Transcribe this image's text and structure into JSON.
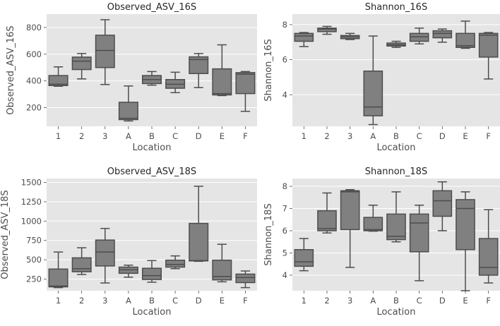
{
  "chart_data": [
    {
      "type": "box",
      "title": "Observed_ASV_16S",
      "xlabel": "Location",
      "ylabel": "Observed_ASV_16S",
      "ylim": [
        60,
        900
      ],
      "yticks": [
        200,
        400,
        600,
        800
      ],
      "ytick_labels": [
        "200",
        "400",
        "600",
        "800"
      ],
      "categories": [
        "1",
        "2",
        "3",
        "A",
        "B",
        "C",
        "D",
        "E",
        "F"
      ],
      "boxes": [
        {
          "whislo": 360,
          "q1": 365,
          "med": 375,
          "q3": 440,
          "whishi": 505
        },
        {
          "whislo": 415,
          "q1": 485,
          "med": 548,
          "q3": 578,
          "whishi": 605
        },
        {
          "whislo": 373,
          "q1": 500,
          "med": 628,
          "q3": 742,
          "whishi": 858
        },
        {
          "whislo": 100,
          "q1": 110,
          "med": 120,
          "q3": 240,
          "whishi": 362
        },
        {
          "whislo": 368,
          "q1": 380,
          "med": 410,
          "q3": 440,
          "whishi": 470
        },
        {
          "whislo": 312,
          "q1": 345,
          "med": 375,
          "q3": 410,
          "whishi": 465
        },
        {
          "whislo": 350,
          "q1": 455,
          "med": 560,
          "q3": 580,
          "whishi": 605
        },
        {
          "whislo": 290,
          "q1": 295,
          "med": 305,
          "q3": 490,
          "whishi": 670
        },
        {
          "whislo": 172,
          "q1": 305,
          "med": 450,
          "q3": 462,
          "whishi": 470
        }
      ]
    },
    {
      "type": "box",
      "title": "Shannon_16S",
      "xlabel": "Location",
      "ylabel": "Shannon_16S",
      "ylim": [
        2.2,
        8.6
      ],
      "yticks": [
        4,
        6,
        8
      ],
      "ytick_labels": [
        "4",
        "6",
        "8"
      ],
      "categories": [
        "1",
        "2",
        "3",
        "A",
        "B",
        "C",
        "D",
        "E",
        "F"
      ],
      "boxes": [
        {
          "whislo": 6.75,
          "q1": 7.05,
          "med": 7.35,
          "q3": 7.5,
          "whishi": 7.55
        },
        {
          "whislo": 7.45,
          "q1": 7.6,
          "med": 7.75,
          "q3": 7.8,
          "whishi": 7.9
        },
        {
          "whislo": 7.15,
          "q1": 7.2,
          "med": 7.3,
          "q3": 7.38,
          "whishi": 7.5
        },
        {
          "whislo": 2.3,
          "q1": 2.8,
          "med": 3.3,
          "q3": 5.35,
          "whishi": 7.35
        },
        {
          "whislo": 6.7,
          "q1": 6.78,
          "med": 6.85,
          "q3": 6.95,
          "whishi": 7.05
        },
        {
          "whislo": 6.9,
          "q1": 7.05,
          "med": 7.3,
          "q3": 7.5,
          "whishi": 7.8
        },
        {
          "whislo": 7.0,
          "q1": 7.25,
          "med": 7.5,
          "q3": 7.65,
          "whishi": 7.75
        },
        {
          "whislo": 6.65,
          "q1": 6.7,
          "med": 6.8,
          "q3": 7.5,
          "whishi": 8.2
        },
        {
          "whislo": 4.9,
          "q1": 6.15,
          "med": 7.4,
          "q3": 7.5,
          "whishi": 7.55
        }
      ]
    },
    {
      "type": "box",
      "title": "Observed_ASV_18S",
      "xlabel": "Location",
      "ylabel": "Observed_ASV_18S",
      "ylim": [
        100,
        1550
      ],
      "yticks": [
        250,
        500,
        750,
        1000,
        1250,
        1500
      ],
      "ytick_labels": [
        "250",
        "500",
        "750",
        "1000",
        "1250",
        "1500"
      ],
      "categories": [
        "1",
        "2",
        "3",
        "A",
        "B",
        "C",
        "D",
        "E",
        "F"
      ],
      "boxes": [
        {
          "whislo": 140,
          "q1": 150,
          "med": 160,
          "q3": 380,
          "whishi": 600
        },
        {
          "whislo": 310,
          "q1": 345,
          "med": 385,
          "q3": 525,
          "whishi": 655
        },
        {
          "whislo": 200,
          "q1": 420,
          "med": 600,
          "q3": 755,
          "whishi": 905
        },
        {
          "whislo": 275,
          "q1": 325,
          "med": 370,
          "q3": 405,
          "whishi": 430
        },
        {
          "whislo": 210,
          "q1": 245,
          "med": 295,
          "q3": 390,
          "whishi": 490
        },
        {
          "whislo": 385,
          "q1": 405,
          "med": 440,
          "q3": 495,
          "whishi": 550
        },
        {
          "whislo": 480,
          "q1": 485,
          "med": 490,
          "q3": 970,
          "whishi": 1450
        },
        {
          "whislo": 215,
          "q1": 240,
          "med": 285,
          "q3": 495,
          "whishi": 700
        },
        {
          "whislo": 140,
          "q1": 205,
          "med": 270,
          "q3": 315,
          "whishi": 355
        }
      ]
    },
    {
      "type": "box",
      "title": "Shannon_18S",
      "xlabel": "Location",
      "ylabel": "Shannon_18S",
      "ylim": [
        3.3,
        8.35
      ],
      "yticks": [
        4,
        5,
        6,
        7,
        8
      ],
      "ytick_labels": [
        "4",
        "5",
        "6",
        "7",
        "8"
      ],
      "categories": [
        "1",
        "2",
        "3",
        "A",
        "B",
        "C",
        "D",
        "E",
        "F"
      ],
      "boxes": [
        {
          "whislo": 4.2,
          "q1": 4.4,
          "med": 4.6,
          "q3": 5.15,
          "whishi": 5.65
        },
        {
          "whislo": 5.9,
          "q1": 6.0,
          "med": 6.1,
          "q3": 6.9,
          "whishi": 7.7
        },
        {
          "whislo": 4.35,
          "q1": 6.05,
          "med": 7.75,
          "q3": 7.8,
          "whishi": 7.85
        },
        {
          "whislo": 5.98,
          "q1": 6.0,
          "med": 6.05,
          "q3": 6.6,
          "whishi": 7.15
        },
        {
          "whislo": 5.5,
          "q1": 5.6,
          "med": 5.75,
          "q3": 6.75,
          "whishi": 7.75
        },
        {
          "whislo": 3.75,
          "q1": 5.05,
          "med": 6.35,
          "q3": 6.75,
          "whishi": 7.15
        },
        {
          "whislo": 6.0,
          "q1": 6.65,
          "med": 7.35,
          "q3": 7.8,
          "whishi": 8.2
        },
        {
          "whislo": 3.3,
          "q1": 5.15,
          "med": 7.0,
          "q3": 7.4,
          "whishi": 7.75
        },
        {
          "whislo": 3.65,
          "q1": 4.0,
          "med": 4.35,
          "q3": 5.65,
          "whishi": 6.95
        }
      ]
    }
  ]
}
